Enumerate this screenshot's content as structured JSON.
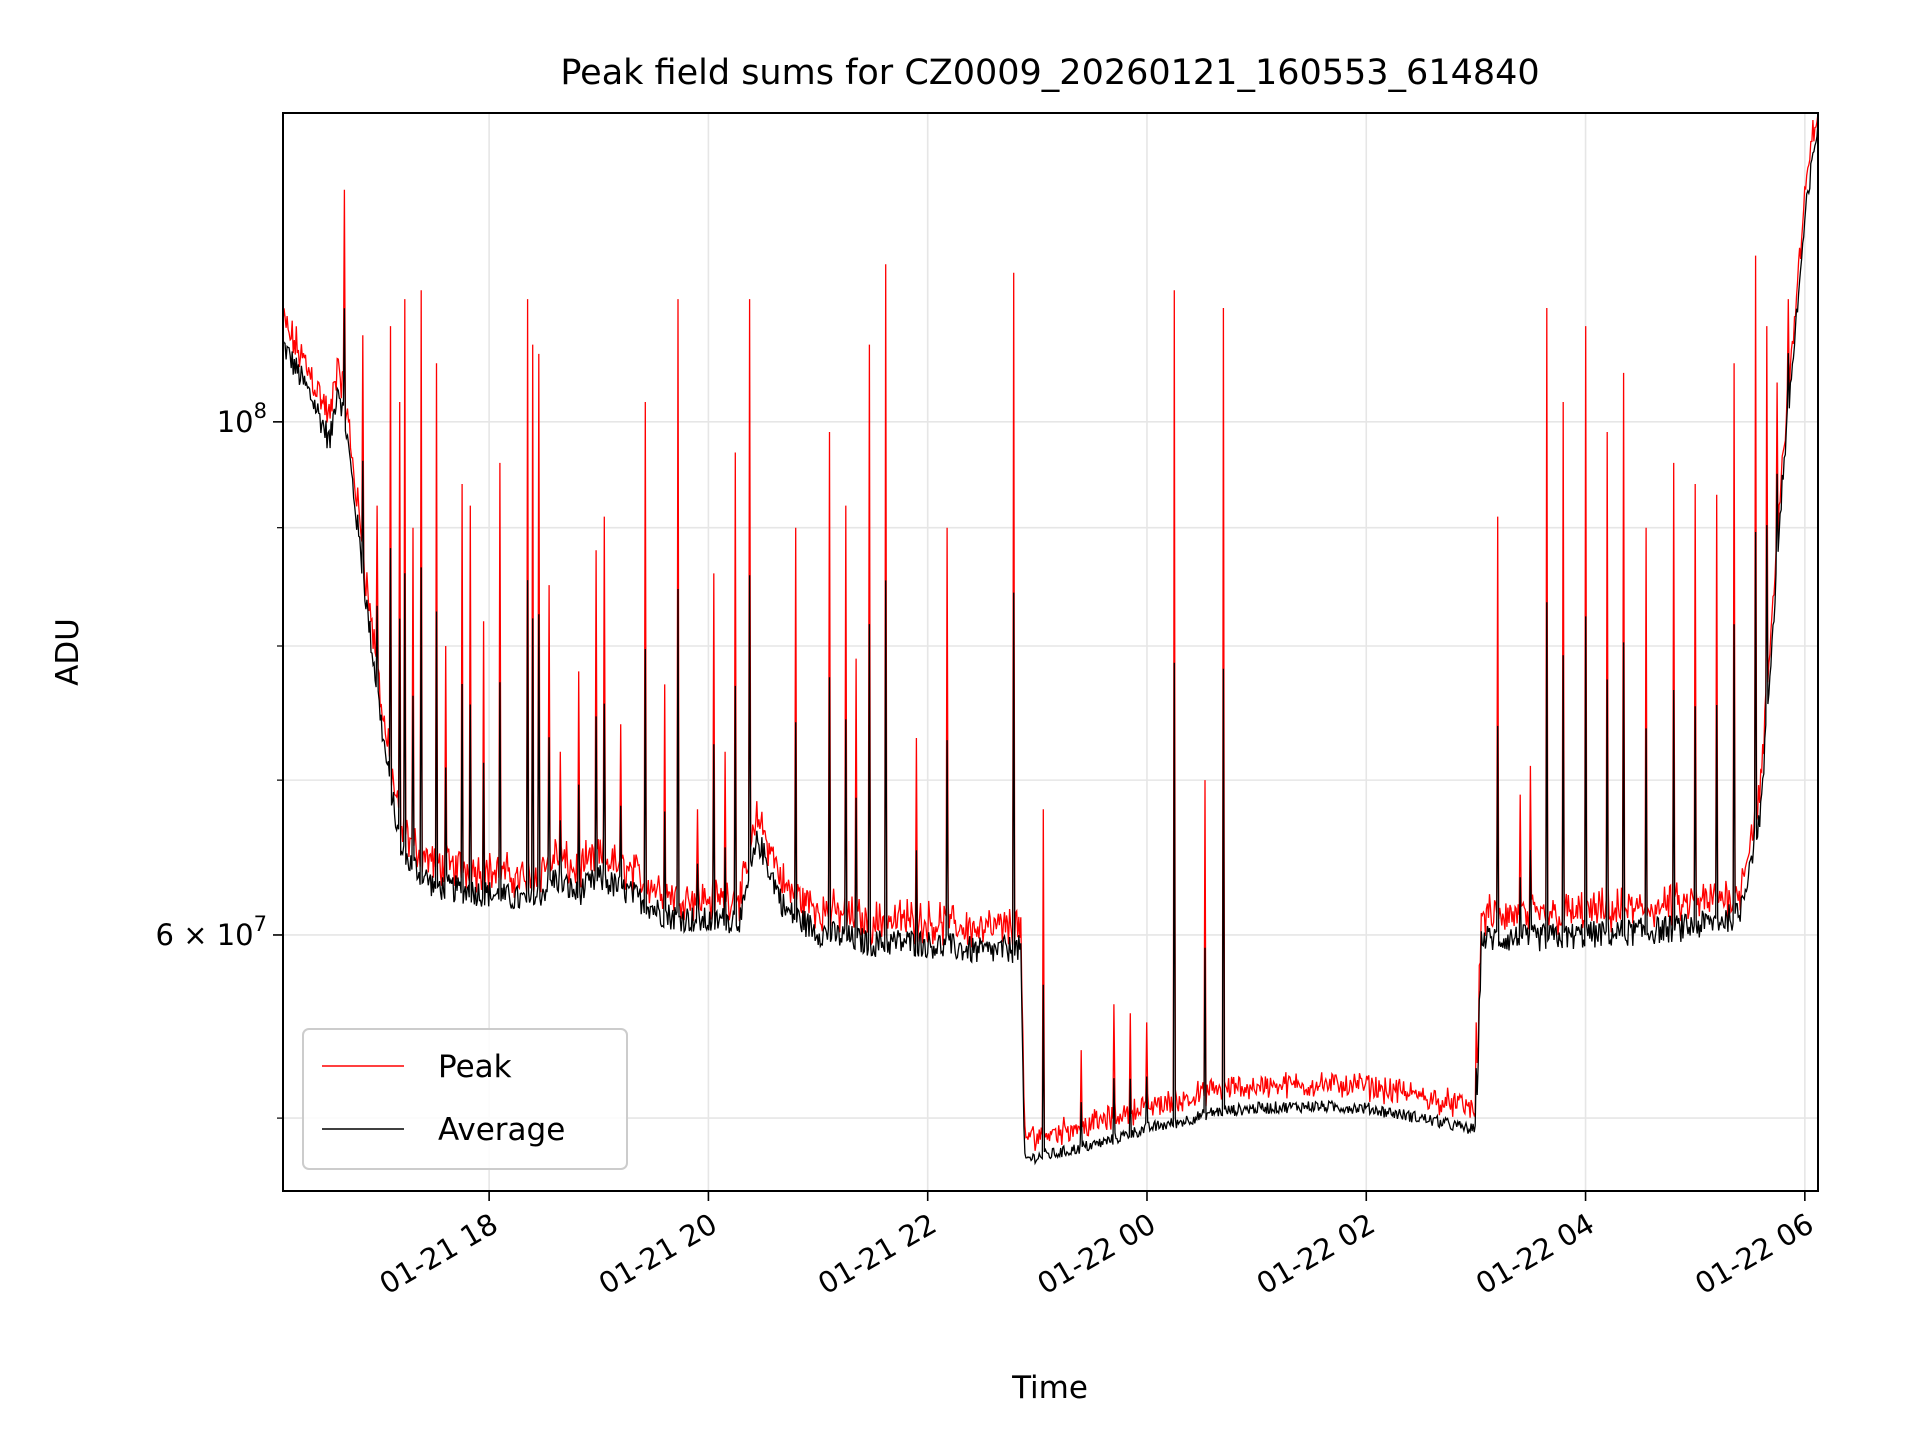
{
  "chart_data": {
    "type": "line",
    "title": "Peak field sums for CZ0009_20260121_160553_614840",
    "xlabel": "Time",
    "ylabel": "ADU",
    "yscale": "log",
    "xlim_hours": [
      16.12,
      30.12
    ],
    "ylim": [
      46500000,
      136000000
    ],
    "x_ticks": [
      {
        "hours": 18,
        "label": "01-21 18"
      },
      {
        "hours": 20,
        "label": "01-21 20"
      },
      {
        "hours": 22,
        "label": "01-21 22"
      },
      {
        "hours": 24,
        "label": "01-22 00"
      },
      {
        "hours": 26,
        "label": "01-22 02"
      },
      {
        "hours": 28,
        "label": "01-22 04"
      },
      {
        "hours": 30,
        "label": "01-22 06"
      }
    ],
    "y_ticks": [
      {
        "value": 100000000,
        "label_base": "10",
        "label_exp": "8"
      },
      {
        "value": 60000000,
        "label_base": "6 × 10",
        "label_exp": "7"
      }
    ],
    "y_minor_ticks": [
      50000000,
      70000000,
      80000000,
      90000000
    ],
    "grid": true,
    "legend": {
      "position": "lower-left",
      "entries": [
        "Peak",
        "Average"
      ]
    },
    "series": [
      {
        "name": "Average",
        "color": "#000000",
        "baseline": [
          [
            16.12,
            108000000
          ],
          [
            16.4,
            102000000
          ],
          [
            16.55,
            98000000
          ],
          [
            16.62,
            104000000
          ],
          [
            16.7,
            99000000
          ],
          [
            16.9,
            82000000
          ],
          [
            17.05,
            72000000
          ],
          [
            17.2,
            65000000
          ],
          [
            17.5,
            63000000
          ],
          [
            18.0,
            62500000
          ],
          [
            18.4,
            62000000
          ],
          [
            18.6,
            63500000
          ],
          [
            18.8,
            62500000
          ],
          [
            19.0,
            63500000
          ],
          [
            19.3,
            62500000
          ],
          [
            19.6,
            61200000
          ],
          [
            20.0,
            60800000
          ],
          [
            20.3,
            61000000
          ],
          [
            20.45,
            66000000
          ],
          [
            20.7,
            61500000
          ],
          [
            21.0,
            60200000
          ],
          [
            21.5,
            59500000
          ],
          [
            21.8,
            59600000
          ],
          [
            22.2,
            59300000
          ],
          [
            22.5,
            59000000
          ],
          [
            22.85,
            59200000
          ],
          [
            22.88,
            48000000
          ],
          [
            23.2,
            48300000
          ],
          [
            23.6,
            48800000
          ],
          [
            24.0,
            49500000
          ],
          [
            24.3,
            49800000
          ],
          [
            24.6,
            50300000
          ],
          [
            25.0,
            50500000
          ],
          [
            25.5,
            50600000
          ],
          [
            26.0,
            50500000
          ],
          [
            26.5,
            50000000
          ],
          [
            27.0,
            49400000
          ],
          [
            27.05,
            59800000
          ],
          [
            27.5,
            59800000
          ],
          [
            28.0,
            60000000
          ],
          [
            28.5,
            60200000
          ],
          [
            29.0,
            60500000
          ],
          [
            29.4,
            61200000
          ],
          [
            29.6,
            68000000
          ],
          [
            29.8,
            95000000
          ],
          [
            30.0,
            122000000
          ],
          [
            30.12,
            135000000
          ]
        ]
      },
      {
        "name": "Peak",
        "color": "#ff0000",
        "spikes": [
          [
            16.68,
            126000000
          ],
          [
            16.78,
            85000000
          ],
          [
            16.85,
            109000000
          ],
          [
            16.98,
            92000000
          ],
          [
            17.1,
            110000000
          ],
          [
            17.18,
            102000000
          ],
          [
            17.23,
            113000000
          ],
          [
            17.31,
            90000000
          ],
          [
            17.38,
            114000000
          ],
          [
            17.52,
            106000000
          ],
          [
            17.6,
            80000000
          ],
          [
            17.75,
            94000000
          ],
          [
            17.83,
            92000000
          ],
          [
            17.95,
            82000000
          ],
          [
            18.1,
            96000000
          ],
          [
            18.35,
            113000000
          ],
          [
            18.4,
            108000000
          ],
          [
            18.45,
            107000000
          ],
          [
            18.55,
            85000000
          ],
          [
            18.65,
            72000000
          ],
          [
            18.82,
            78000000
          ],
          [
            18.98,
            88000000
          ],
          [
            19.05,
            91000000
          ],
          [
            19.2,
            74000000
          ],
          [
            19.42,
            102000000
          ],
          [
            19.6,
            77000000
          ],
          [
            19.72,
            113000000
          ],
          [
            19.9,
            68000000
          ],
          [
            20.05,
            86000000
          ],
          [
            20.15,
            72000000
          ],
          [
            20.25,
            97000000
          ],
          [
            20.38,
            113000000
          ],
          [
            20.8,
            90000000
          ],
          [
            21.1,
            99000000
          ],
          [
            21.25,
            92000000
          ],
          [
            21.35,
            79000000
          ],
          [
            21.47,
            108000000
          ],
          [
            21.62,
            117000000
          ],
          [
            21.9,
            73000000
          ],
          [
            22.18,
            90000000
          ],
          [
            22.78,
            116000000
          ],
          [
            23.05,
            68000000
          ],
          [
            23.4,
            53500000
          ],
          [
            23.7,
            56000000
          ],
          [
            23.85,
            55500000
          ],
          [
            24.0,
            55000000
          ],
          [
            24.25,
            114000000
          ],
          [
            24.53,
            70000000
          ],
          [
            24.7,
            112000000
          ],
          [
            27.0,
            55000000
          ],
          [
            27.2,
            91000000
          ],
          [
            27.4,
            69000000
          ],
          [
            27.5,
            71000000
          ],
          [
            27.65,
            112000000
          ],
          [
            27.8,
            102000000
          ],
          [
            28.0,
            110000000
          ],
          [
            28.2,
            99000000
          ],
          [
            28.35,
            105000000
          ],
          [
            28.55,
            90000000
          ],
          [
            28.8,
            96000000
          ],
          [
            29.0,
            94000000
          ],
          [
            29.2,
            93000000
          ],
          [
            29.35,
            106000000
          ],
          [
            29.55,
            118000000
          ],
          [
            29.65,
            110000000
          ],
          [
            29.75,
            104000000
          ],
          [
            29.85,
            113000000
          ],
          [
            29.95,
            108000000
          ],
          [
            30.05,
            113000000
          ]
        ]
      }
    ]
  }
}
